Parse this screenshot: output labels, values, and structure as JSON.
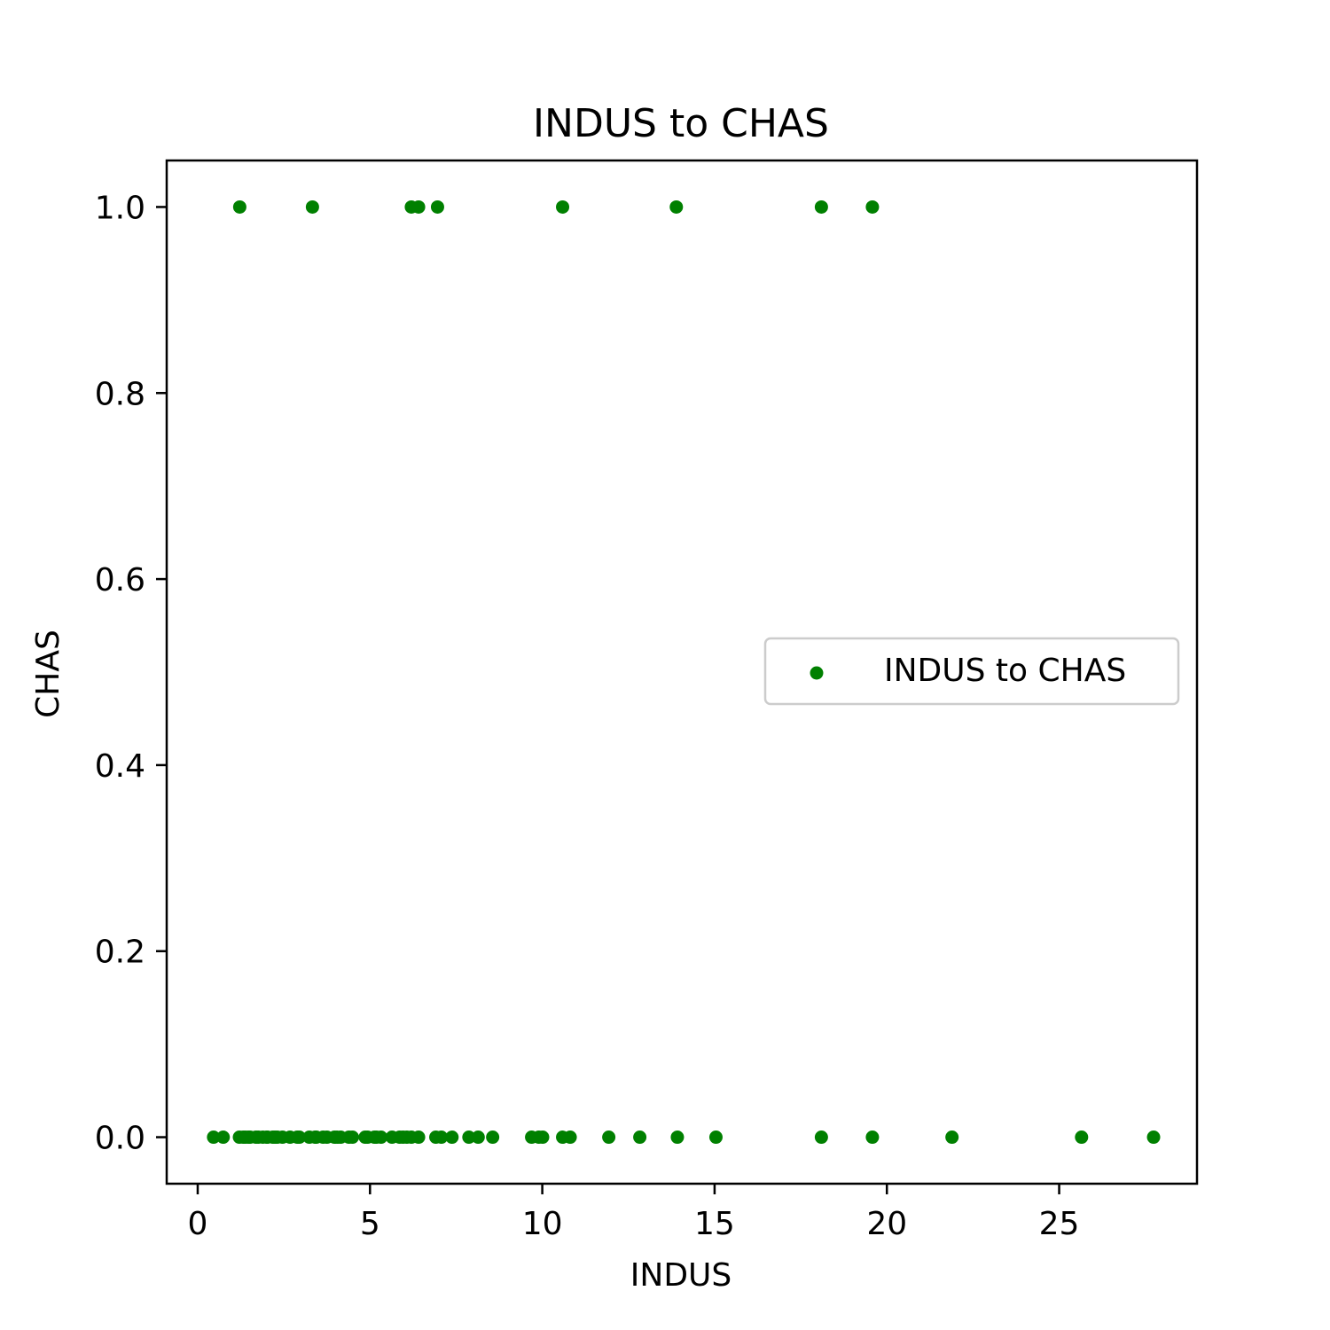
{
  "chart_data": {
    "type": "scatter",
    "title": "INDUS to CHAS",
    "xlabel": "INDUS",
    "ylabel": "CHAS",
    "xlim": [
      -0.9,
      29.0
    ],
    "ylim": [
      -0.05,
      1.05
    ],
    "xticks": [
      0,
      5,
      10,
      15,
      20,
      25
    ],
    "yticks": [
      0.0,
      0.2,
      0.4,
      0.6,
      0.8,
      1.0
    ],
    "xtick_labels": [
      "0",
      "5",
      "10",
      "15",
      "20",
      "25"
    ],
    "ytick_labels": [
      "0.0",
      "0.2",
      "0.4",
      "0.6",
      "0.8",
      "1.0"
    ],
    "grid": false,
    "legend_position": "center-right",
    "series": [
      {
        "name": "INDUS to CHAS",
        "color": "#008000",
        "points": [
          {
            "x": 1.22,
            "y": 1
          },
          {
            "x": 3.33,
            "y": 1
          },
          {
            "x": 6.2,
            "y": 1
          },
          {
            "x": 6.41,
            "y": 1
          },
          {
            "x": 6.96,
            "y": 1
          },
          {
            "x": 10.59,
            "y": 1
          },
          {
            "x": 13.89,
            "y": 1
          },
          {
            "x": 18.1,
            "y": 1
          },
          {
            "x": 19.58,
            "y": 1
          },
          {
            "x": 0.46,
            "y": 0
          },
          {
            "x": 0.74,
            "y": 0
          },
          {
            "x": 1.21,
            "y": 0
          },
          {
            "x": 1.32,
            "y": 0
          },
          {
            "x": 1.38,
            "y": 0
          },
          {
            "x": 1.47,
            "y": 0
          },
          {
            "x": 1.52,
            "y": 0
          },
          {
            "x": 1.69,
            "y": 0
          },
          {
            "x": 1.76,
            "y": 0
          },
          {
            "x": 1.89,
            "y": 0
          },
          {
            "x": 2.01,
            "y": 0
          },
          {
            "x": 2.02,
            "y": 0
          },
          {
            "x": 2.18,
            "y": 0
          },
          {
            "x": 2.24,
            "y": 0
          },
          {
            "x": 2.31,
            "y": 0
          },
          {
            "x": 2.46,
            "y": 0
          },
          {
            "x": 2.68,
            "y": 0
          },
          {
            "x": 2.89,
            "y": 0
          },
          {
            "x": 2.95,
            "y": 0
          },
          {
            "x": 3.24,
            "y": 0
          },
          {
            "x": 3.41,
            "y": 0
          },
          {
            "x": 3.44,
            "y": 0
          },
          {
            "x": 3.64,
            "y": 0
          },
          {
            "x": 3.75,
            "y": 0
          },
          {
            "x": 3.97,
            "y": 0
          },
          {
            "x": 4.05,
            "y": 0
          },
          {
            "x": 4.15,
            "y": 0
          },
          {
            "x": 4.39,
            "y": 0
          },
          {
            "x": 4.49,
            "y": 0
          },
          {
            "x": 4.86,
            "y": 0
          },
          {
            "x": 4.93,
            "y": 0
          },
          {
            "x": 5.13,
            "y": 0
          },
          {
            "x": 5.19,
            "y": 0
          },
          {
            "x": 5.32,
            "y": 0
          },
          {
            "x": 5.64,
            "y": 0
          },
          {
            "x": 5.86,
            "y": 0
          },
          {
            "x": 5.96,
            "y": 0
          },
          {
            "x": 6.07,
            "y": 0
          },
          {
            "x": 6.2,
            "y": 0
          },
          {
            "x": 6.41,
            "y": 0
          },
          {
            "x": 6.91,
            "y": 0
          },
          {
            "x": 7.07,
            "y": 0
          },
          {
            "x": 7.38,
            "y": 0
          },
          {
            "x": 7.87,
            "y": 0
          },
          {
            "x": 8.14,
            "y": 0
          },
          {
            "x": 8.56,
            "y": 0
          },
          {
            "x": 9.69,
            "y": 0
          },
          {
            "x": 9.9,
            "y": 0
          },
          {
            "x": 10.01,
            "y": 0
          },
          {
            "x": 10.59,
            "y": 0
          },
          {
            "x": 10.81,
            "y": 0
          },
          {
            "x": 11.93,
            "y": 0
          },
          {
            "x": 12.83,
            "y": 0
          },
          {
            "x": 13.92,
            "y": 0
          },
          {
            "x": 15.04,
            "y": 0
          },
          {
            "x": 18.1,
            "y": 0
          },
          {
            "x": 19.58,
            "y": 0
          },
          {
            "x": 21.89,
            "y": 0
          },
          {
            "x": 25.65,
            "y": 0
          },
          {
            "x": 27.74,
            "y": 0
          }
        ]
      }
    ]
  }
}
